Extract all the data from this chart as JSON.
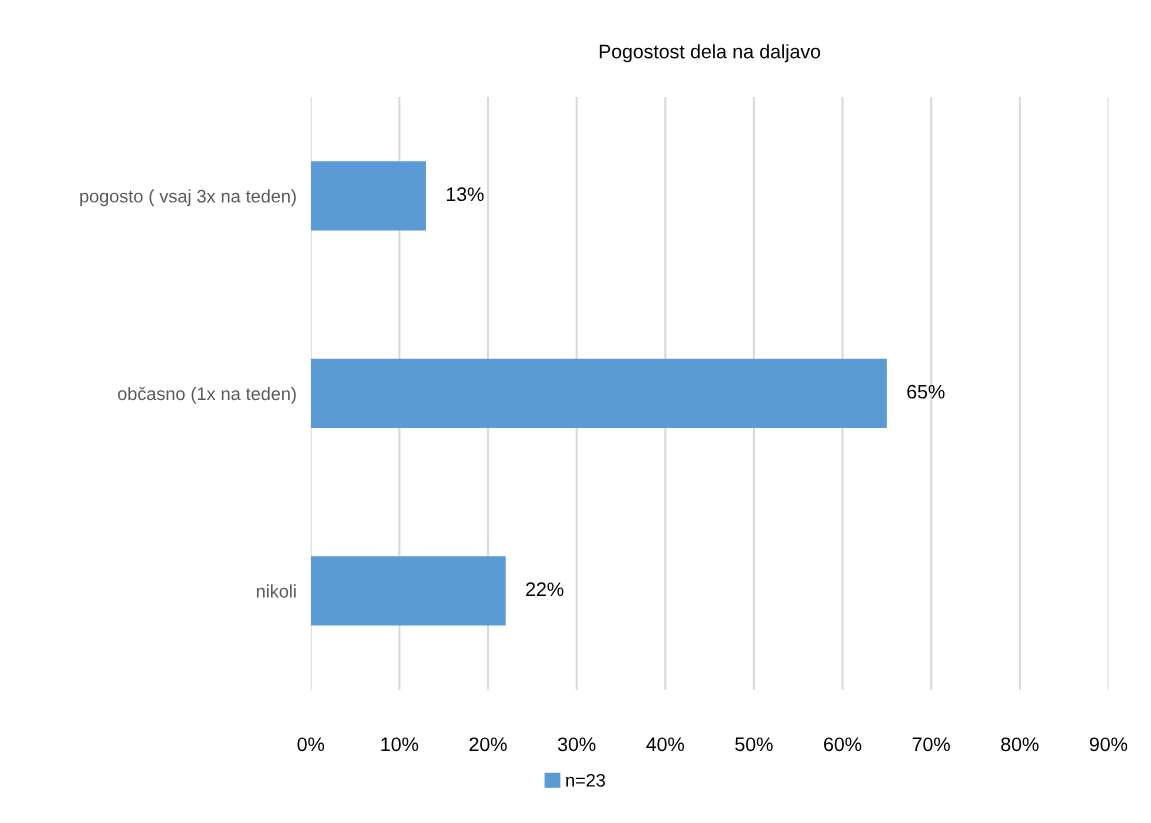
{
  "chart_data": {
    "type": "bar",
    "orientation": "horizontal",
    "title": "Pogostost dela na daljavo",
    "categories": [
      "pogosto ( vsaj 3x na teden)",
      "občasno (1x na teden)",
      "nikoli"
    ],
    "series": [
      {
        "name": "n=23",
        "color": "#5b9bd5",
        "values": [
          13,
          65,
          22
        ],
        "value_labels": [
          "13%",
          "65%",
          "22%"
        ]
      }
    ],
    "xlim": [
      0,
      90
    ],
    "xticks": [
      {
        "value": 0,
        "label": "0%"
      },
      {
        "value": 10,
        "label": "10%"
      },
      {
        "value": 20,
        "label": "20%"
      },
      {
        "value": 30,
        "label": "30%"
      },
      {
        "value": 40,
        "label": "40%"
      },
      {
        "value": 50,
        "label": "50%"
      },
      {
        "value": 60,
        "label": "60%"
      },
      {
        "value": 70,
        "label": "70%"
      },
      {
        "value": 80,
        "label": "80%"
      },
      {
        "value": 90,
        "label": "90%"
      }
    ],
    "grid": "x",
    "legend": "bottom"
  }
}
